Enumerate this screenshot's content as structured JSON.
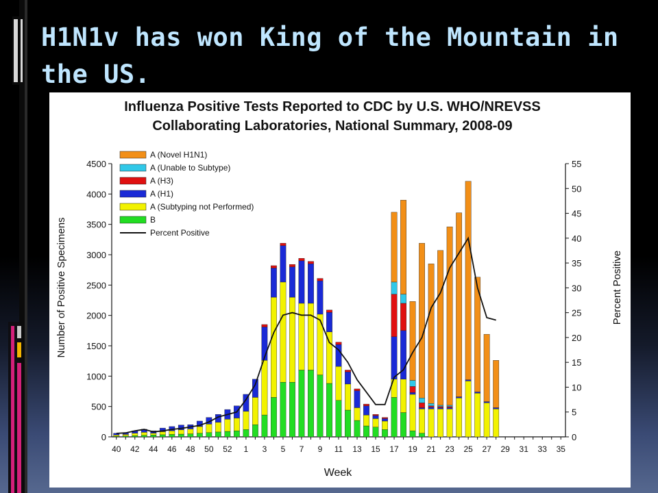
{
  "slide": {
    "title": "H1N1v has won King of the Mountain in the US."
  },
  "chart_data": {
    "type": "bar",
    "stacked": true,
    "title_lines": [
      "Influenza Positive Tests Reported to CDC by U.S. WHO/NREVSS",
      "Collaborating Laboratories, National Summary, 2008-09"
    ],
    "xlabel": "Week",
    "ylabel_left": "Number of Positive Specimens",
    "ylabel_right": "Percent Positive",
    "ylim_left": [
      0,
      4500
    ],
    "ylim_right": [
      0,
      55
    ],
    "y_ticks_left": [
      0,
      500,
      1000,
      1500,
      2000,
      2500,
      3000,
      3500,
      4000,
      4500
    ],
    "y_ticks_right": [
      0,
      5,
      10,
      15,
      20,
      25,
      30,
      35,
      40,
      45,
      50,
      55
    ],
    "categories": [
      "40",
      "41",
      "42",
      "43",
      "44",
      "45",
      "46",
      "47",
      "48",
      "49",
      "50",
      "51",
      "52",
      "53",
      "1",
      "2",
      "3",
      "4",
      "5",
      "6",
      "7",
      "8",
      "9",
      "10",
      "11",
      "12",
      "13",
      "14",
      "15",
      "16",
      "17",
      "18",
      "19",
      "20",
      "21",
      "22",
      "23",
      "24",
      "25",
      "26",
      "27",
      "28",
      "29",
      "30",
      "31",
      "32",
      "33",
      "34",
      "35"
    ],
    "x_tick_labels": [
      "40",
      "42",
      "44",
      "46",
      "48",
      "50",
      "52",
      "1",
      "3",
      "5",
      "7",
      "9",
      "11",
      "13",
      "15",
      "17",
      "19",
      "21",
      "23",
      "25",
      "27",
      "29",
      "31",
      "33",
      "35"
    ],
    "legend_position": "top-left",
    "series": [
      {
        "name": "B",
        "color": "#22dd22",
        "values": [
          10,
          15,
          20,
          25,
          30,
          35,
          40,
          45,
          50,
          60,
          70,
          80,
          90,
          100,
          120,
          200,
          360,
          650,
          900,
          900,
          1100,
          1100,
          1020,
          880,
          600,
          440,
          270,
          180,
          160,
          120,
          650,
          400,
          100,
          60,
          0,
          0,
          0,
          0,
          0,
          0,
          0,
          0,
          0,
          0,
          0,
          0,
          0,
          0,
          0
        ]
      },
      {
        "name": "A (Subtyping not Performed)",
        "color": "#f2f200",
        "values": [
          20,
          25,
          40,
          50,
          30,
          50,
          60,
          70,
          80,
          110,
          140,
          160,
          200,
          210,
          300,
          450,
          900,
          1650,
          1650,
          1400,
          1100,
          1100,
          1000,
          850,
          560,
          430,
          210,
          180,
          140,
          140,
          300,
          550,
          600,
          400,
          460,
          460,
          460,
          640,
          920,
          720,
          560,
          460,
          0,
          0,
          0,
          0,
          0,
          0,
          0
        ]
      },
      {
        "name": "A (H1)",
        "color": "#1a2ad6",
        "values": [
          30,
          30,
          40,
          50,
          40,
          60,
          70,
          80,
          70,
          90,
          110,
          130,
          160,
          200,
          280,
          300,
          550,
          480,
          600,
          500,
          700,
          650,
          550,
          320,
          360,
          200,
          280,
          150,
          50,
          40,
          700,
          800,
          30,
          20,
          30,
          20,
          20,
          20,
          20,
          20,
          20,
          20,
          0,
          0,
          0,
          0,
          0,
          0,
          0
        ]
      },
      {
        "name": "A (H3)",
        "color": "#e01010",
        "values": [
          0,
          0,
          0,
          0,
          0,
          0,
          0,
          0,
          0,
          0,
          0,
          0,
          0,
          0,
          0,
          0,
          40,
          40,
          40,
          40,
          40,
          40,
          40,
          40,
          40,
          30,
          30,
          30,
          20,
          20,
          700,
          450,
          100,
          80,
          20,
          20,
          20,
          0,
          0,
          0,
          0,
          0,
          0,
          0,
          0,
          0,
          0,
          0,
          0
        ]
      },
      {
        "name": "A (Unable to Subtype)",
        "color": "#30c8e8",
        "values": [
          0,
          0,
          0,
          0,
          0,
          0,
          0,
          0,
          0,
          0,
          0,
          0,
          0,
          0,
          0,
          0,
          0,
          0,
          0,
          0,
          0,
          0,
          0,
          0,
          0,
          0,
          0,
          0,
          0,
          0,
          200,
          150,
          100,
          80,
          40,
          20,
          20,
          0,
          0,
          0,
          0,
          0,
          0,
          0,
          0,
          0,
          0,
          0,
          0
        ]
      },
      {
        "name": "A (Novel H1N1)",
        "color": "#f28f17",
        "values": [
          0,
          0,
          0,
          0,
          0,
          0,
          0,
          0,
          0,
          0,
          0,
          0,
          0,
          0,
          0,
          0,
          0,
          0,
          0,
          0,
          0,
          0,
          0,
          0,
          0,
          0,
          0,
          0,
          0,
          0,
          1150,
          1550,
          1300,
          2550,
          2300,
          2550,
          2940,
          3030,
          3270,
          1890,
          1110,
          780,
          0,
          0,
          0,
          0,
          0,
          0,
          0
        ]
      }
    ],
    "line_series": {
      "name": "Percent Positive",
      "color": "#111111",
      "axis": "right",
      "values": [
        0.7,
        0.8,
        1.2,
        1.5,
        1.0,
        1.2,
        1.5,
        1.7,
        2.0,
        2.3,
        3.0,
        4.0,
        4.5,
        5.0,
        7.5,
        10.5,
        16.0,
        21.0,
        24.5,
        25.0,
        24.5,
        24.5,
        23.5,
        19.0,
        17.5,
        15.0,
        11.5,
        9.0,
        6.5,
        6.5,
        12.0,
        13.5,
        17.0,
        20.0,
        26.0,
        29.0,
        34.0,
        37.0,
        40.0,
        30.0,
        24.0,
        23.5
      ]
    }
  }
}
